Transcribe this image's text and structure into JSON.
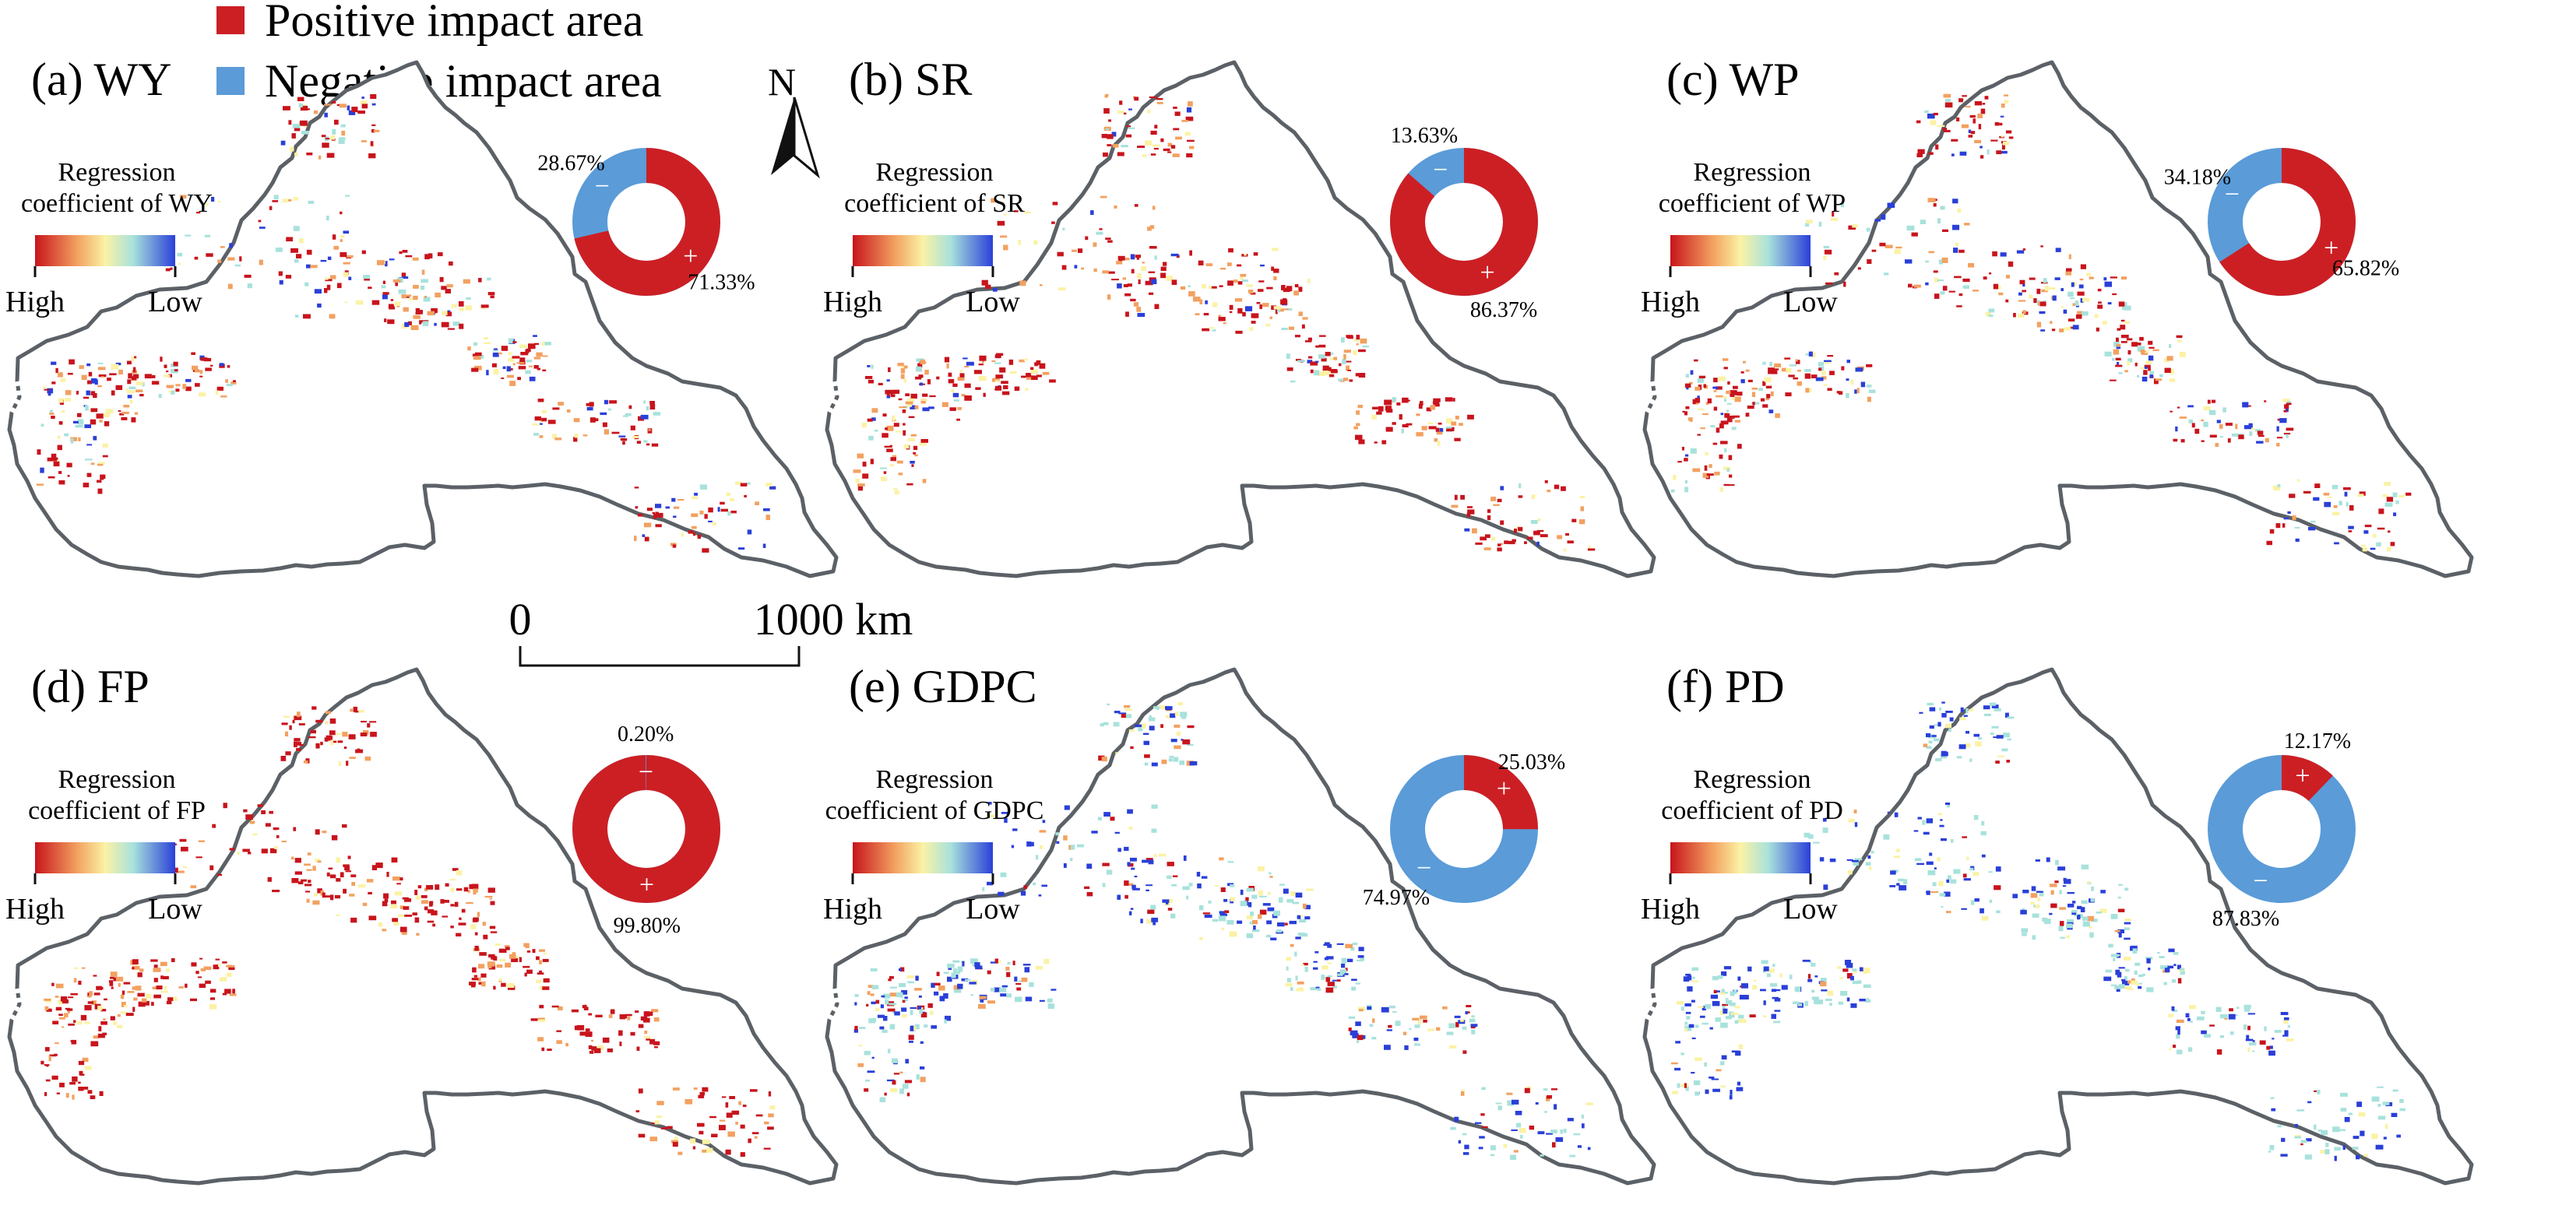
{
  "legend": {
    "positive_label": "Positive impact area",
    "negative_label": "Negative impact area",
    "positive_color": "#cc1f24",
    "negative_color": "#5a9bd8"
  },
  "north_arrow": {
    "label": "N",
    "icon": "north-arrow-icon"
  },
  "scale_bar": {
    "start": "0",
    "end": "1000 km"
  },
  "colors": {
    "border": "#5b6166",
    "ramp": [
      "#c8141c",
      "#f2a160",
      "#fbf2a5",
      "#a8e2dc",
      "#2a3fd8"
    ]
  },
  "panels": [
    {
      "id": "wy",
      "title": "(a) WY",
      "reg_line1": "Regression",
      "reg_line2": "coefficient of WY",
      "high": "High",
      "low": "Low",
      "positive_pct": 71.33,
      "negative_pct": 28.67,
      "positive_label": "71.33%",
      "negative_label": "28.67%"
    },
    {
      "id": "sr",
      "title": "(b) SR",
      "reg_line1": "Regression",
      "reg_line2": "coefficient of SR",
      "high": "High",
      "low": "Low",
      "positive_pct": 86.37,
      "negative_pct": 13.63,
      "positive_label": "86.37%",
      "negative_label": "13.63%"
    },
    {
      "id": "wp",
      "title": "(c) WP",
      "reg_line1": "Regression",
      "reg_line2": "coefficient of WP",
      "high": "High",
      "low": "Low",
      "positive_pct": 65.82,
      "negative_pct": 34.18,
      "positive_label": "65.82%",
      "negative_label": "34.18%"
    },
    {
      "id": "fp",
      "title": "(d) FP",
      "reg_line1": "Regression",
      "reg_line2": "coefficient of FP",
      "high": "High",
      "low": "Low",
      "positive_pct": 99.8,
      "negative_pct": 0.2,
      "positive_label": "99.80%",
      "negative_label": "0.20%"
    },
    {
      "id": "gdpc",
      "title": "(e) GDPC",
      "reg_line1": "Regression",
      "reg_line2": "coefficient of GDPC",
      "high": "High",
      "low": "Low",
      "positive_pct": 25.03,
      "negative_pct": 74.97,
      "positive_label": "25.03%",
      "negative_label": "74.97%"
    },
    {
      "id": "pd",
      "title": "(f) PD",
      "reg_line1": "Regression",
      "reg_line2": "coefficient of PD",
      "high": "High",
      "low": "Low",
      "positive_pct": 12.17,
      "negative_pct": 87.83,
      "positive_label": "12.17%",
      "negative_label": "87.83%"
    }
  ]
}
